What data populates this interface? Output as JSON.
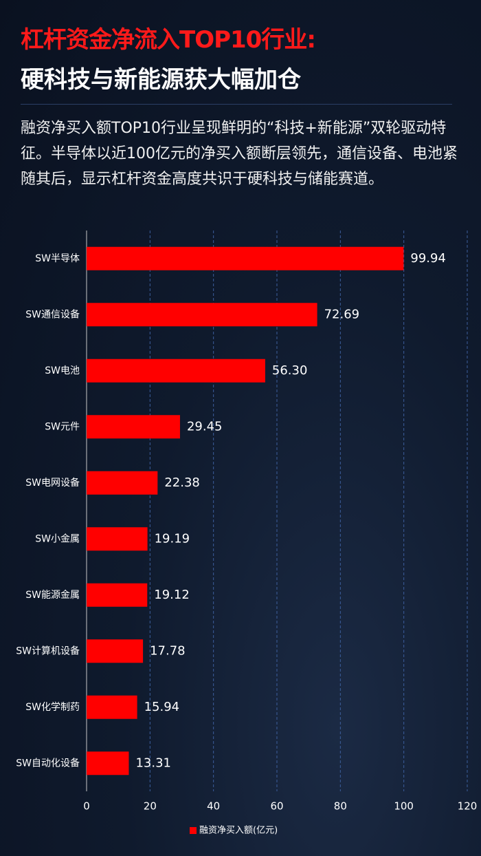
{
  "header": {
    "title_line1": "杠杆资金净流入TOP10行业:",
    "title_line2": "硬科技与新能源获大幅加仓"
  },
  "description": "融资净买入额TOP10行业呈现鲜明的“科技+新能源”双轮驱动特征。半导体以近100亿元的净买入额断层领先，通信设备、电池紧随其后，显示杠杆资金高度共识于硬科技与储能赛道。",
  "chart_data": {
    "type": "bar",
    "orientation": "horizontal",
    "categories": [
      "SW半导体",
      "SW通信设备",
      "SW电池",
      "SW元件",
      "SW电网设备",
      "SW小金属",
      "SW能源金属",
      "SW计算机设备",
      "SW化学制药",
      "SW自动化设备"
    ],
    "series": [
      {
        "name": "融资净买入额(亿元)",
        "color": "#ff0000",
        "values": [
          99.94,
          72.69,
          56.3,
          29.45,
          22.38,
          19.19,
          19.12,
          17.78,
          15.94,
          13.31
        ],
        "value_labels": [
          "99.94",
          "72.69",
          "56.30",
          "29.45",
          "22.38",
          "19.19",
          "19.12",
          "17.78",
          "15.94",
          "13.31"
        ]
      }
    ],
    "xlim": [
      0,
      120
    ],
    "xticks": [
      0,
      20,
      40,
      60,
      80,
      100,
      120
    ],
    "grid": true,
    "legend": "bottom"
  }
}
